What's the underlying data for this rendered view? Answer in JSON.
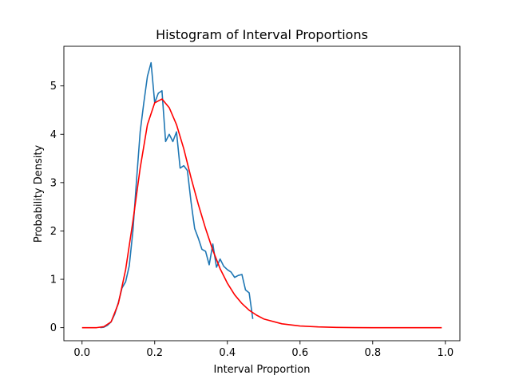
{
  "chart_data": {
    "type": "line",
    "title": "Histogram of Interval Proportions",
    "xlabel": "Interval Proportion",
    "ylabel": "Probability Density",
    "xlim": [
      -0.05,
      1.04
    ],
    "ylim": [
      -0.27,
      5.82
    ],
    "xticks": [
      0.0,
      0.2,
      0.4,
      0.6,
      0.8,
      1.0
    ],
    "xtick_labels": [
      "0.0",
      "0.2",
      "0.4",
      "0.6",
      "0.8",
      "1.0"
    ],
    "yticks": [
      0,
      1,
      2,
      3,
      4,
      5
    ],
    "ytick_labels": [
      "0",
      "1",
      "2",
      "3",
      "4",
      "5"
    ],
    "grid": false,
    "legend": "none",
    "series": [
      {
        "color": "#1f77b4",
        "points": [
          [
            0.05,
            0.0
          ],
          [
            0.06,
            0.01
          ],
          [
            0.07,
            0.05
          ],
          [
            0.08,
            0.12
          ],
          [
            0.09,
            0.28
          ],
          [
            0.1,
            0.52
          ],
          [
            0.11,
            0.82
          ],
          [
            0.12,
            0.95
          ],
          [
            0.13,
            1.28
          ],
          [
            0.14,
            2.0
          ],
          [
            0.15,
            3.05
          ],
          [
            0.16,
            4.05
          ],
          [
            0.17,
            4.65
          ],
          [
            0.18,
            5.2
          ],
          [
            0.19,
            5.48
          ],
          [
            0.2,
            4.65
          ],
          [
            0.21,
            4.85
          ],
          [
            0.22,
            4.9
          ],
          [
            0.23,
            3.85
          ],
          [
            0.24,
            4.0
          ],
          [
            0.25,
            3.85
          ],
          [
            0.26,
            4.05
          ],
          [
            0.27,
            3.3
          ],
          [
            0.28,
            3.35
          ],
          [
            0.29,
            3.25
          ],
          [
            0.3,
            2.6
          ],
          [
            0.31,
            2.05
          ],
          [
            0.32,
            1.85
          ],
          [
            0.33,
            1.62
          ],
          [
            0.34,
            1.58
          ],
          [
            0.35,
            1.3
          ],
          [
            0.36,
            1.73
          ],
          [
            0.37,
            1.25
          ],
          [
            0.38,
            1.42
          ],
          [
            0.39,
            1.27
          ],
          [
            0.4,
            1.2
          ],
          [
            0.41,
            1.15
          ],
          [
            0.42,
            1.04
          ],
          [
            0.43,
            1.08
          ],
          [
            0.44,
            1.1
          ],
          [
            0.45,
            0.78
          ],
          [
            0.46,
            0.72
          ],
          [
            0.47,
            0.18
          ]
        ]
      },
      {
        "color": "#ff0000",
        "points": [
          [
            0.0,
            0.0
          ],
          [
            0.02,
            0.0
          ],
          [
            0.04,
            0.0
          ],
          [
            0.06,
            0.02
          ],
          [
            0.08,
            0.12
          ],
          [
            0.1,
            0.5
          ],
          [
            0.12,
            1.2
          ],
          [
            0.14,
            2.2
          ],
          [
            0.16,
            3.3
          ],
          [
            0.18,
            4.2
          ],
          [
            0.2,
            4.65
          ],
          [
            0.22,
            4.73
          ],
          [
            0.24,
            4.55
          ],
          [
            0.26,
            4.2
          ],
          [
            0.28,
            3.7
          ],
          [
            0.3,
            3.1
          ],
          [
            0.32,
            2.55
          ],
          [
            0.34,
            2.05
          ],
          [
            0.36,
            1.6
          ],
          [
            0.38,
            1.22
          ],
          [
            0.4,
            0.92
          ],
          [
            0.42,
            0.68
          ],
          [
            0.44,
            0.5
          ],
          [
            0.46,
            0.36
          ],
          [
            0.48,
            0.26
          ],
          [
            0.5,
            0.18
          ],
          [
            0.55,
            0.08
          ],
          [
            0.6,
            0.035
          ],
          [
            0.65,
            0.015
          ],
          [
            0.7,
            0.005
          ],
          [
            0.75,
            0.002
          ],
          [
            0.8,
            0.0
          ],
          [
            0.9,
            0.0
          ],
          [
            0.99,
            0.0
          ]
        ]
      }
    ]
  }
}
